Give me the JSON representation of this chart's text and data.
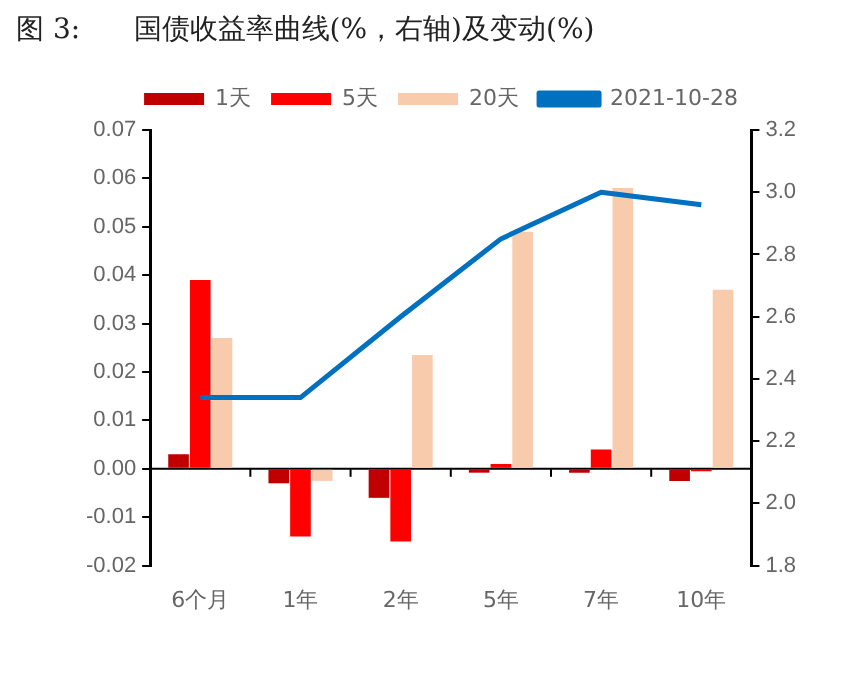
{
  "chart_data": {
    "type": "bar",
    "title": "图 3:      国债收益率曲线(%，右轴)及变动(%)",
    "categories": [
      "6个月",
      "1年",
      "2年",
      "5年",
      "7年",
      "10年"
    ],
    "series": [
      {
        "name": "1天",
        "color": "#c00000",
        "values": [
          0.003,
          -0.003,
          -0.006,
          -0.0008,
          -0.0008,
          -0.0025
        ]
      },
      {
        "name": "5天",
        "color": "#ff0000",
        "values": [
          0.039,
          -0.014,
          -0.015,
          0.001,
          0.004,
          -0.0005
        ]
      },
      {
        "name": "20天",
        "color": "#f8cbad",
        "values": [
          0.027,
          -0.0025,
          0.0235,
          0.049,
          0.058,
          0.037
        ]
      },
      {
        "name": "2021-10-28",
        "type": "line",
        "axis": "y2",
        "color": "#0070c0",
        "values": [
          2.34,
          2.34,
          2.6,
          2.85,
          3.0,
          2.96
        ]
      }
    ],
    "ylim": [
      -0.02,
      0.07
    ],
    "yticks": [
      {
        "value": -0.02,
        "label": "-0.02"
      },
      {
        "value": -0.01,
        "label": "-0.01"
      },
      {
        "value": 0,
        "label": "0.00"
      },
      {
        "value": 0.01,
        "label": "0.01"
      },
      {
        "value": 0.02,
        "label": "0.02"
      },
      {
        "value": 0.03,
        "label": "0.03"
      },
      {
        "value": 0.04,
        "label": "0.04"
      },
      {
        "value": 0.05,
        "label": "0.05"
      },
      {
        "value": 0.06,
        "label": "0.06"
      },
      {
        "value": 0.07,
        "label": "0.07"
      }
    ],
    "y2lim": [
      1.8,
      3.2
    ],
    "y2ticks": [
      {
        "value": 1.8,
        "label": "1.8"
      },
      {
        "value": 2.0,
        "label": "2.0"
      },
      {
        "value": 2.2,
        "label": "2.2"
      },
      {
        "value": 2.4,
        "label": "2.4"
      },
      {
        "value": 2.6,
        "label": "2.6"
      },
      {
        "value": 2.8,
        "label": "2.8"
      },
      {
        "value": 3.0,
        "label": "3.0"
      },
      {
        "value": 3.2,
        "label": "3.2"
      }
    ],
    "legend": "top",
    "marker": "none"
  }
}
